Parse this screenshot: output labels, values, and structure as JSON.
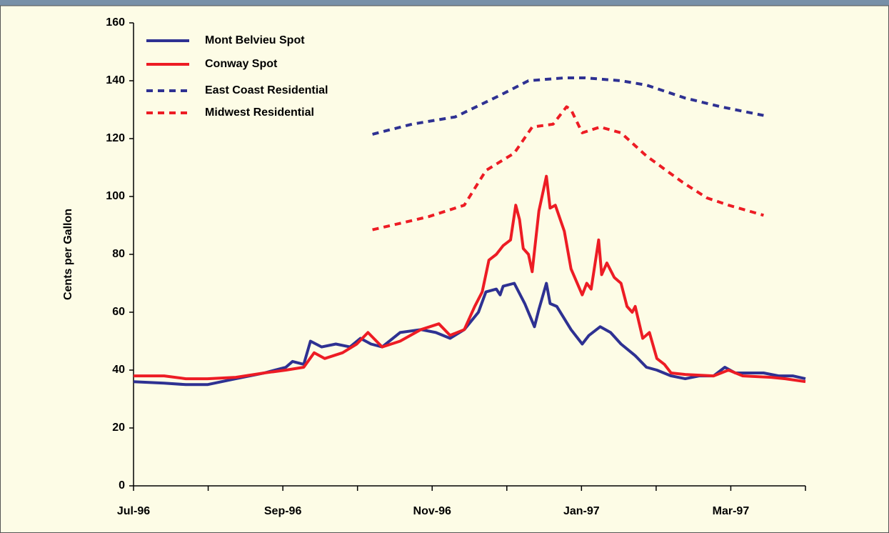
{
  "chart_data": {
    "type": "line",
    "ylabel": "Cents per Gallon",
    "ylim": [
      0,
      160
    ],
    "yticks": [
      0,
      20,
      40,
      60,
      80,
      100,
      120,
      140,
      160
    ],
    "xlim": [
      0,
      9
    ],
    "xticks": [
      {
        "value": 0,
        "label": "Jul-96"
      },
      {
        "value": 2,
        "label": "Sep-96"
      },
      {
        "value": 4,
        "label": "Nov-96"
      },
      {
        "value": 6,
        "label": "Jan-97"
      },
      {
        "value": 8,
        "label": "Mar-97"
      }
    ],
    "xminor_ticks": [
      1,
      3,
      5,
      7,
      9
    ],
    "legend": "top-left",
    "series": [
      {
        "name": "Mont Belvieu Spot",
        "color": "#2e3192",
        "style": "solid",
        "x": [
          0,
          0.41,
          0.7,
          0.99,
          1.37,
          1.75,
          2.04,
          2.13,
          2.28,
          2.37,
          2.52,
          2.71,
          2.9,
          3.04,
          3.18,
          3.33,
          3.57,
          3.85,
          4.05,
          4.24,
          4.43,
          4.62,
          4.72,
          4.86,
          4.91,
          4.95,
          5.1,
          5.24,
          5.37,
          5.43,
          5.53,
          5.58,
          5.67,
          5.86,
          6.01,
          6.1,
          6.25,
          6.39,
          6.53,
          6.72,
          6.87,
          7.01,
          7.2,
          7.39,
          7.58,
          7.77,
          7.92,
          8.06,
          8.25,
          8.44,
          8.64,
          8.83,
          9.0
        ],
        "values": [
          36,
          35.5,
          35,
          35,
          37,
          39,
          41,
          43,
          42,
          50,
          48,
          49,
          48,
          51,
          49,
          48,
          53,
          54,
          53,
          51,
          54,
          60,
          67,
          68,
          66,
          69,
          70,
          63,
          55,
          61,
          70,
          63,
          62,
          54,
          49,
          52,
          55,
          53,
          49,
          45,
          41,
          40,
          38,
          37,
          38,
          38,
          41,
          39,
          39,
          39,
          38,
          38,
          37
        ]
      },
      {
        "name": "Conway Spot",
        "color": "#ed1c24",
        "style": "solid",
        "x": [
          0,
          0.41,
          0.7,
          0.99,
          1.37,
          1.75,
          2.04,
          2.28,
          2.42,
          2.56,
          2.8,
          2.99,
          3.14,
          3.33,
          3.57,
          3.85,
          4.09,
          4.24,
          4.43,
          4.57,
          4.67,
          4.76,
          4.86,
          4.95,
          5.05,
          5.12,
          5.17,
          5.22,
          5.29,
          5.34,
          5.43,
          5.53,
          5.58,
          5.65,
          5.77,
          5.86,
          6.01,
          6.07,
          6.13,
          6.23,
          6.27,
          6.34,
          6.44,
          6.53,
          6.61,
          6.68,
          6.72,
          6.82,
          6.91,
          7.01,
          7.11,
          7.2,
          7.39,
          7.77,
          7.97,
          8.16,
          8.54,
          8.73,
          9.0
        ],
        "values": [
          38,
          38,
          37,
          37,
          37.5,
          39,
          40,
          41,
          46,
          44,
          46,
          49,
          53,
          48,
          50,
          54,
          56,
          52,
          54,
          62,
          67,
          78,
          80,
          83,
          85,
          97,
          92,
          82,
          80,
          74,
          95,
          107,
          96,
          97,
          88,
          75,
          66,
          70,
          68,
          85,
          73,
          77,
          72,
          70,
          62,
          60,
          62,
          51,
          53,
          44,
          42,
          39,
          38.5,
          38,
          40,
          38,
          37.5,
          37,
          36
        ]
      },
      {
        "name": "East Coast Residential",
        "color": "#2e3192",
        "style": "dashed",
        "x": [
          3.2,
          3.73,
          4.31,
          4.91,
          5.29,
          5.77,
          6.05,
          6.53,
          6.87,
          7.39,
          7.87,
          8.44
        ],
        "values": [
          121.5,
          125,
          127.5,
          135,
          140,
          141,
          141,
          140,
          138.5,
          134,
          131,
          128
        ]
      },
      {
        "name": "Midwest Residential",
        "color": "#ed1c24",
        "style": "dashed",
        "x": [
          3.2,
          3.95,
          4.43,
          4.72,
          5.1,
          5.34,
          5.62,
          5.8,
          5.86,
          6.01,
          6.25,
          6.53,
          6.87,
          7.35,
          7.68,
          7.97,
          8.44
        ],
        "values": [
          88.5,
          93,
          97,
          109,
          115,
          124,
          125,
          131,
          130,
          122,
          124,
          122,
          114,
          105,
          99.5,
          97,
          93.5
        ]
      }
    ]
  }
}
